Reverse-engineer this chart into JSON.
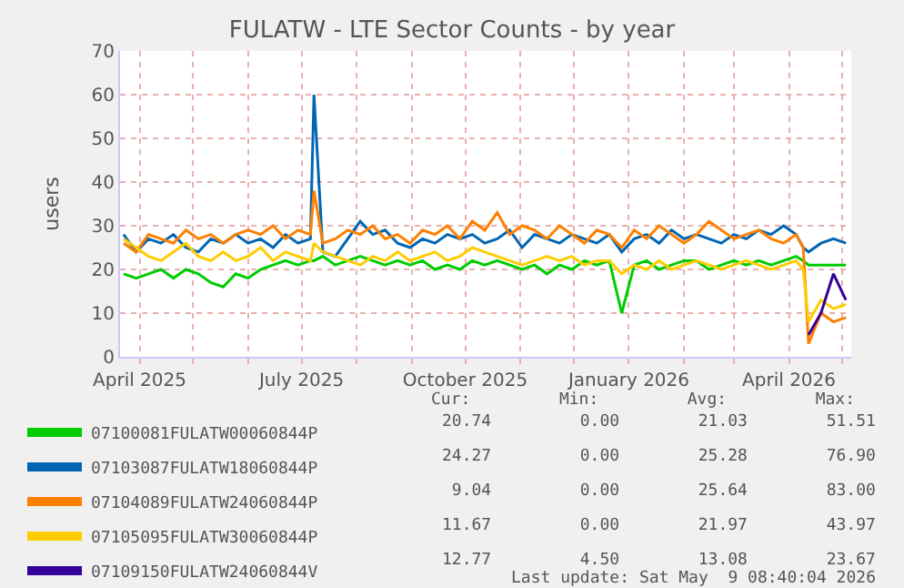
{
  "chart_data": {
    "type": "line",
    "title": "FULATW - LTE Sector Counts - by year",
    "ylabel": "users",
    "x": [
      "2025-03-23",
      "2025-03-30",
      "2025-04-06",
      "2025-04-13",
      "2025-04-20",
      "2025-04-27",
      "2025-05-04",
      "2025-05-11",
      "2025-05-18",
      "2025-05-25",
      "2025-06-01",
      "2025-06-08",
      "2025-06-15",
      "2025-06-22",
      "2025-06-29",
      "2025-07-06",
      "2025-07-08",
      "2025-07-13",
      "2025-07-20",
      "2025-07-27",
      "2025-08-03",
      "2025-08-10",
      "2025-08-17",
      "2025-08-24",
      "2025-08-31",
      "2025-09-07",
      "2025-09-14",
      "2025-09-21",
      "2025-09-28",
      "2025-10-05",
      "2025-10-12",
      "2025-10-19",
      "2025-10-26",
      "2025-11-02",
      "2025-11-09",
      "2025-11-16",
      "2025-11-23",
      "2025-11-30",
      "2025-12-07",
      "2025-12-14",
      "2025-12-21",
      "2025-12-28",
      "2026-01-04",
      "2026-01-11",
      "2026-01-18",
      "2026-01-25",
      "2026-02-01",
      "2026-02-08",
      "2026-02-15",
      "2026-02-22",
      "2026-03-01",
      "2026-03-08",
      "2026-03-15",
      "2026-03-22",
      "2026-03-29",
      "2026-04-05",
      "2026-04-09",
      "2026-04-12",
      "2026-04-19",
      "2026-04-26",
      "2026-05-03"
    ],
    "series": [
      {
        "name": "07100081FULATW00060844P",
        "color": "#00cc00",
        "values": [
          19,
          18,
          19,
          20,
          18,
          20,
          19,
          17,
          16,
          19,
          18,
          20,
          21,
          22,
          21,
          22,
          22,
          23,
          21,
          22,
          23,
          22,
          21,
          22,
          21,
          22,
          20,
          21,
          20,
          22,
          21,
          22,
          21,
          20,
          21,
          19,
          21,
          20,
          22,
          21,
          22,
          10,
          21,
          22,
          20,
          21,
          22,
          22,
          20,
          21,
          22,
          21,
          22,
          21,
          22,
          23,
          22,
          21,
          21,
          21,
          21
        ]
      },
      {
        "name": "07103087FULATW18060844P",
        "color": "#0066b3",
        "values": [
          28,
          24,
          27,
          26,
          28,
          25,
          24,
          27,
          26,
          28,
          26,
          27,
          25,
          28,
          26,
          27,
          60,
          24,
          23,
          27,
          31,
          28,
          29,
          26,
          25,
          27,
          26,
          28,
          27,
          28,
          26,
          27,
          29,
          25,
          28,
          27,
          26,
          28,
          27,
          26,
          28,
          24,
          27,
          28,
          26,
          29,
          27,
          28,
          27,
          26,
          28,
          27,
          29,
          28,
          30,
          28,
          25,
          24,
          26,
          27,
          26
        ]
      },
      {
        "name": "07104089FULATW24060844P",
        "color": "#ff8000",
        "values": [
          26,
          24,
          28,
          27,
          26,
          29,
          27,
          28,
          26,
          28,
          29,
          28,
          30,
          27,
          29,
          28,
          38,
          26,
          27,
          29,
          28,
          30,
          27,
          28,
          26,
          29,
          28,
          30,
          27,
          31,
          29,
          33,
          28,
          30,
          29,
          27,
          30,
          28,
          26,
          29,
          28,
          25,
          29,
          27,
          30,
          28,
          26,
          28,
          31,
          29,
          27,
          28,
          29,
          27,
          26,
          28,
          25,
          3,
          10,
          8,
          9
        ]
      },
      {
        "name": "07105095FULATW30060844P",
        "color": "#ffcc00",
        "values": [
          27,
          25,
          23,
          22,
          24,
          26,
          23,
          22,
          24,
          22,
          23,
          25,
          22,
          24,
          23,
          22,
          26,
          24,
          23,
          22,
          21,
          23,
          22,
          24,
          22,
          23,
          24,
          22,
          23,
          25,
          24,
          23,
          22,
          21,
          22,
          23,
          22,
          23,
          21,
          22,
          22,
          19,
          21,
          20,
          22,
          20,
          21,
          22,
          21,
          20,
          21,
          22,
          21,
          20,
          21,
          22,
          20,
          8,
          13,
          11,
          12
        ]
      },
      {
        "name": "07109150FULATW24060844V",
        "color": "#330099",
        "values": [
          null,
          null,
          null,
          null,
          null,
          null,
          null,
          null,
          null,
          null,
          null,
          null,
          null,
          null,
          null,
          null,
          null,
          null,
          null,
          null,
          null,
          null,
          null,
          null,
          null,
          null,
          null,
          null,
          null,
          null,
          null,
          null,
          null,
          null,
          null,
          null,
          null,
          null,
          null,
          null,
          null,
          null,
          null,
          null,
          null,
          null,
          null,
          null,
          null,
          null,
          null,
          null,
          null,
          null,
          null,
          null,
          null,
          5,
          10,
          19,
          13
        ]
      }
    ],
    "xlim": [
      "2025-03-21",
      "2026-05-06"
    ],
    "xticks": [
      {
        "value": "2025-04-01",
        "label": "April 2025"
      },
      {
        "value": "2025-05-01",
        "label": null
      },
      {
        "value": "2025-06-01",
        "label": null
      },
      {
        "value": "2025-07-01",
        "label": "July 2025"
      },
      {
        "value": "2025-08-01",
        "label": null
      },
      {
        "value": "2025-09-01",
        "label": null
      },
      {
        "value": "2025-10-01",
        "label": "October 2025"
      },
      {
        "value": "2025-11-01",
        "label": null
      },
      {
        "value": "2025-12-01",
        "label": null
      },
      {
        "value": "2026-01-01",
        "label": "January 2026"
      },
      {
        "value": "2026-02-01",
        "label": null
      },
      {
        "value": "2026-03-01",
        "label": null
      },
      {
        "value": "2026-04-01",
        "label": "April 2026"
      },
      {
        "value": "2026-05-01",
        "label": null
      }
    ],
    "ylim": [
      0,
      70
    ],
    "yticks": [
      0,
      10,
      20,
      30,
      40,
      50,
      60,
      70
    ],
    "grid": true,
    "legend": "bottom left",
    "marker": "none",
    "line_style": "solid",
    "annotations": [
      "Cur:         Min:         Avg:         Max:",
      "20.74         0.00        21.03        51.51",
      "24.27         0.00        25.28        76.90",
      " 9.04         0.00        25.64        83.00",
      "11.67         0.00        21.97        43.97",
      "12.77         4.50        13.08        23.67",
      "Last update: Sat May  9 08:40:04 2026"
    ]
  }
}
